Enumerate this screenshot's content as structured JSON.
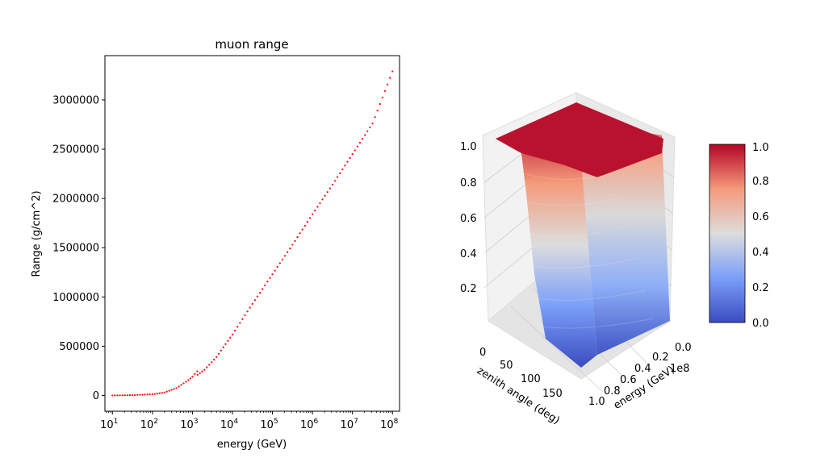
{
  "chart_data": [
    {
      "type": "scatter",
      "title": "muon range",
      "xlabel": "energy (GeV)",
      "ylabel": "Range (g/cm^2)",
      "xscale": "log",
      "xlim": [
        6.5,
        150000000
      ],
      "ylim": [
        -160000,
        3450000
      ],
      "color": "#ff0000",
      "x_ticks": [
        {
          "value": 10,
          "base": "10",
          "exp": "1"
        },
        {
          "value": 100,
          "base": "10",
          "exp": "2"
        },
        {
          "value": 1000,
          "base": "10",
          "exp": "3"
        },
        {
          "value": 10000,
          "base": "10",
          "exp": "4"
        },
        {
          "value": 100000,
          "base": "10",
          "exp": "5"
        },
        {
          "value": 1000000,
          "base": "10",
          "exp": "6"
        },
        {
          "value": 10000000,
          "base": "10",
          "exp": "7"
        },
        {
          "value": 100000000,
          "base": "10",
          "exp": "8"
        }
      ],
      "y_ticks": [
        {
          "value": 0,
          "label": "0"
        },
        {
          "value": 500000,
          "label": "500000"
        },
        {
          "value": 1000000,
          "label": "1000000"
        },
        {
          "value": 1500000,
          "label": "1500000"
        },
        {
          "value": 2000000,
          "label": "2000000"
        },
        {
          "value": 2500000,
          "label": "2500000"
        },
        {
          "value": 3000000,
          "label": "3000000"
        }
      ],
      "anchors": [
        {
          "log10E": 1.0,
          "r": 0
        },
        {
          "log10E": 1.5,
          "r": 3000
        },
        {
          "log10E": 2.0,
          "r": 12000
        },
        {
          "log10E": 2.3,
          "r": 30000
        },
        {
          "log10E": 2.6,
          "r": 75000
        },
        {
          "log10E": 2.9,
          "r": 155000
        },
        {
          "log10E": 3.0,
          "r": 190000
        },
        {
          "log10E": 3.12,
          "r": 245000
        },
        {
          "log10E": 3.13,
          "r": 210000
        },
        {
          "log10E": 3.3,
          "r": 260000
        },
        {
          "log10E": 3.6,
          "r": 390000
        },
        {
          "log10E": 4.0,
          "r": 620000
        },
        {
          "log10E": 4.5,
          "r": 930000
        },
        {
          "log10E": 5.0,
          "r": 1230000
        },
        {
          "log10E": 5.5,
          "r": 1530000
        },
        {
          "log10E": 6.0,
          "r": 1840000
        },
        {
          "log10E": 6.5,
          "r": 2140000
        },
        {
          "log10E": 7.0,
          "r": 2450000
        },
        {
          "log10E": 7.5,
          "r": 2760000
        },
        {
          "log10E": 8.0,
          "r": 3290000
        }
      ]
    },
    {
      "type": "surface3d",
      "xlabel": "zenith angle (deg)",
      "ylabel": "energy (GeV)",
      "y_offset_label": "1e8",
      "x_ticks": [
        "0",
        "50",
        "100",
        "150"
      ],
      "y_ticks": [
        "0.0",
        "0.2",
        "0.4",
        "0.6",
        "0.8",
        "1.0"
      ],
      "z_ticks": [
        "0.2",
        "0.4",
        "0.6",
        "0.8",
        "1.0"
      ],
      "colormap": "coolwarm",
      "colorbar_ticks": [
        "0.0",
        "0.2",
        "0.4",
        "0.6",
        "0.8",
        "1.0"
      ],
      "colorbar_low": "#3b4cc0",
      "colorbar_mid": "#dddddd",
      "colorbar_high": "#b40426"
    }
  ]
}
